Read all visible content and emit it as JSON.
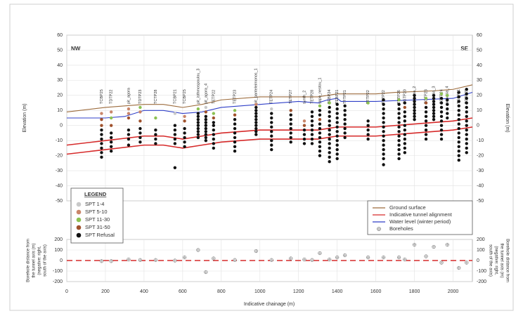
{
  "chart_data": {
    "type": "profile",
    "corner_labels": [
      "NW",
      "SE"
    ],
    "y_label": "Elevation (m)",
    "x_label": "Indicative chainage (m)",
    "xlim": [
      0,
      2100
    ],
    "xticks": [
      0,
      200,
      400,
      600,
      800,
      1000,
      1200,
      1400,
      1600,
      1800,
      2000
    ],
    "ylim": [
      -50,
      60
    ],
    "yticks": [
      -50,
      -40,
      -30,
      -20,
      -10,
      0,
      10,
      20,
      30,
      40,
      50,
      60
    ],
    "y2lim": [
      -200,
      200
    ],
    "y2ticks": [
      -200,
      -100,
      0,
      100,
      200
    ],
    "y2_label": [
      "Borehole distance from",
      "the tunnel axis (m)",
      "(negative: right,",
      "south of the axis)"
    ],
    "grid": true,
    "series": [
      {
        "name": "Ground surface",
        "color": "#9c6b3c",
        "x": [
          0,
          200,
          400,
          500,
          600,
          700,
          800,
          1000,
          1200,
          1300,
          1350,
          1400,
          1600,
          1700,
          1900,
          2000,
          2100
        ],
        "values": [
          9,
          12,
          14,
          14,
          12,
          14,
          17,
          19,
          19,
          19,
          20,
          21,
          21,
          22,
          23,
          24,
          27
        ]
      },
      {
        "name": "Indicative tunnel alignment",
        "color": "#d62a2a",
        "x": [
          0,
          200,
          400,
          500,
          600,
          700,
          800,
          1000,
          1300,
          1400,
          1600,
          1800,
          2000,
          2100
        ],
        "values": [
          -13,
          -10,
          -7,
          -7,
          -9,
          -7,
          -5,
          -3,
          -3,
          -1,
          -1,
          1,
          3,
          5
        ],
        "lower_values": [
          -19,
          -16,
          -13,
          -13,
          -15,
          -13,
          -11,
          -9,
          -9,
          -7,
          -7,
          -5,
          -3,
          -1
        ]
      },
      {
        "name": "Water level (winter period)",
        "color": "#2f3fc8",
        "x": [
          0,
          200,
          300,
          400,
          500,
          600,
          700,
          800,
          1000,
          1200,
          1300,
          1350,
          1400,
          1420,
          1600,
          1800,
          2000,
          2100
        ],
        "values": [
          5,
          5,
          6,
          10,
          10,
          8,
          9,
          12,
          14,
          16,
          15,
          17,
          18,
          16,
          16,
          17,
          18,
          22
        ]
      }
    ],
    "legend_title": "LEGEND",
    "spt_classes": [
      {
        "name": "SPT 1-4",
        "color": "#c9c9c9"
      },
      {
        "name": "SPT 5-10",
        "color": "#c9866a"
      },
      {
        "name": "SPT 11-30",
        "color": "#8cc152"
      },
      {
        "name": "SPT 31-50",
        "color": "#a0522d"
      },
      {
        "name": "SPT Refusal",
        "color": "#111111"
      }
    ],
    "boreholes_label": "Boreholes",
    "boreholes": [
      {
        "name": "TCBP25",
        "x": 180,
        "offset": -5,
        "spt": [
          [],
          [
            8
          ],
          [],
          [
            4,
            0
          ],
          [
            -3,
            -6,
            -9,
            -12,
            -15,
            -18,
            -21
          ]
        ]
      },
      {
        "name": "TDTP22",
        "x": 230,
        "offset": -5,
        "spt": [
          [],
          [
            9
          ],
          [
            5
          ],
          [
            0
          ],
          [
            -5,
            -8,
            -11,
            -14,
            -17
          ]
        ]
      },
      {
        "name": "pit_agora",
        "x": 320,
        "offset": 10,
        "spt": [
          [],
          [
            11,
            8
          ],
          [],
          [
            5
          ],
          [
            -3,
            -6,
            -9,
            -13
          ]
        ]
      },
      {
        "name": "TDTP23",
        "x": 380,
        "offset": 5,
        "spt": [
          [],
          [
            9
          ],
          [
            12
          ],
          [
            3
          ],
          [
            -2,
            -5,
            -8,
            -11
          ]
        ]
      },
      {
        "name": "TCTP28",
        "x": 460,
        "offset": 5,
        "spt": [
          [],
          [],
          [
            5
          ],
          [],
          [
            -3,
            -6,
            -9,
            -12
          ]
        ]
      },
      {
        "name": "TCBP21",
        "x": 560,
        "offset": 0,
        "spt": [
          [
            8
          ],
          [],
          [],
          [],
          [
            0,
            -3,
            -6,
            -9,
            -12,
            -28
          ]
        ]
      },
      {
        "name": "TCBP25",
        "x": 610,
        "offset": 30,
        "spt": [
          [],
          [
            6
          ],
          [],
          [
            3
          ],
          [
            -2,
            -5,
            -8,
            -11,
            -14
          ]
        ]
      },
      {
        "name": "pit_isthmospoulou_3",
        "x": 680,
        "offset": 100,
        "spt": [
          [],
          [],
          [
            11
          ],
          [],
          [
            8,
            6,
            4,
            2,
            0,
            -2,
            -4,
            -6,
            -8
          ]
        ]
      },
      {
        "name": "pit_agora_4",
        "x": 720,
        "offset": -110,
        "spt": [
          [
            12
          ],
          [],
          [],
          [
            9
          ],
          [
            6,
            4,
            2,
            0,
            -2,
            -4,
            -6,
            -8,
            -10
          ]
        ]
      },
      {
        "name": "TETP22",
        "x": 760,
        "offset": 20,
        "spt": [
          [],
          [],
          [
            8
          ],
          [
            5
          ],
          [
            2,
            0,
            -3,
            -6,
            -9,
            -12,
            -15
          ]
        ]
      },
      {
        "name": "TETP23",
        "x": 870,
        "offset": 5,
        "spt": [
          [],
          [],
          [
            10
          ],
          [
            7
          ],
          [
            4,
            1,
            -2,
            -5,
            -8,
            -11,
            -14,
            -17
          ]
        ]
      },
      {
        "name": "pit_panteleimonos_1",
        "x": 980,
        "offset": 90,
        "spt": [
          [],
          [
            14
          ],
          [],
          [],
          [
            12,
            10,
            8,
            6,
            4,
            2,
            0,
            -2,
            -4,
            -6
          ]
        ]
      },
      {
        "name": "TETP24",
        "x": 1060,
        "offset": 5,
        "spt": [
          [
            11
          ],
          [],
          [],
          [],
          [
            8,
            5,
            2,
            -1,
            -4,
            -7,
            -10,
            -13,
            -16
          ]
        ]
      },
      {
        "name": "TETP27",
        "x": 1160,
        "offset": 20,
        "spt": [
          [],
          [],
          [],
          [
            10
          ],
          [
            7,
            4,
            1,
            -2,
            -5,
            -8,
            -11
          ]
        ]
      },
      {
        "name": "synth_2",
        "x": 1230,
        "offset": 10,
        "spt": [
          [],
          [
            3
          ],
          [],
          [
            0
          ],
          [
            -3,
            -6,
            -9,
            -12
          ]
        ]
      },
      {
        "name": "TETP28",
        "x": 1270,
        "offset": 5,
        "spt": [
          [],
          [],
          [],
          [],
          [
            9,
            6,
            3,
            0,
            -3,
            -6,
            -9,
            -12
          ]
        ]
      },
      {
        "name": "sapo_nestou_1",
        "x": 1310,
        "offset": 70,
        "spt": [
          [],
          [],
          [
            13
          ],
          [
            4
          ],
          [
            10,
            7,
            1,
            -2,
            -5,
            -8,
            -11,
            -14,
            -17,
            -20
          ]
        ]
      },
      {
        "name": "TEBP24",
        "x": 1360,
        "offset": 10,
        "spt": [
          [],
          [],
          [
            15
          ],
          [],
          [
            12,
            9,
            6,
            3,
            0,
            -3,
            -6,
            -9,
            -12,
            -15,
            -18,
            -21,
            -24
          ]
        ]
      },
      {
        "name": "TEBP21",
        "x": 1400,
        "offset": 30,
        "spt": [
          [],
          [],
          [],
          [],
          [
            14,
            11,
            8,
            5,
            2,
            -1,
            -4,
            -7,
            -10,
            -13,
            -16,
            -19,
            -22
          ]
        ]
      },
      {
        "name": "TFTP21",
        "x": 1440,
        "offset": 50,
        "spt": [
          [],
          [],
          [],
          [],
          [
            13,
            10,
            7,
            4,
            1,
            -2,
            -5,
            -8
          ]
        ]
      },
      {
        "name": "TFTP22",
        "x": 1560,
        "offset": 30,
        "spt": [
          [],
          [],
          [
            15
          ],
          [],
          [
            3,
            0,
            -3,
            -6,
            -9
          ]
        ]
      },
      {
        "name": "TFTP22",
        "x": 1640,
        "offset": 30,
        "spt": [
          [],
          [],
          [],
          [],
          [
            17,
            14,
            11,
            8,
            5,
            2,
            -1,
            -4,
            -7,
            -10,
            -13,
            -16,
            -19,
            -22,
            -26
          ]
        ]
      },
      {
        "name": "TFTP26",
        "x": 1720,
        "offset": 30,
        "spt": [
          [],
          [],
          [
            17
          ],
          [],
          [
            14,
            11,
            8,
            5,
            2,
            -1,
            -4,
            -7,
            -10,
            -13,
            -16,
            -19,
            -22
          ]
        ]
      },
      {
        "name": "TGTP20",
        "x": 1750,
        "offset": 10,
        "spt": [
          [],
          [],
          [],
          [
            12
          ],
          [
            15,
            9,
            6,
            3,
            0,
            -3,
            -6,
            -9,
            -12,
            -15,
            -18
          ]
        ]
      },
      {
        "name": "arinakia_2",
        "x": 1800,
        "offset": 150,
        "spt": [
          [],
          [],
          [],
          [],
          [
            20,
            18,
            16,
            14,
            12,
            10,
            8,
            6,
            4
          ]
        ]
      },
      {
        "name": "TGTP23",
        "x": 1860,
        "offset": 40,
        "spt": [
          [],
          [],
          [
            18
          ],
          [
            15
          ],
          [
            12,
            9,
            6,
            3,
            0,
            -3,
            -6,
            -9
          ]
        ]
      },
      {
        "name": "arinakia_3",
        "x": 1900,
        "offset": 130,
        "spt": [
          [],
          [],
          [],
          [],
          [
            20,
            18,
            16,
            14,
            12,
            10,
            8,
            6,
            4
          ]
        ]
      },
      {
        "name": "TGTP24",
        "x": 1940,
        "offset": -20,
        "spt": [
          [],
          [],
          [
            21
          ],
          [],
          [
            18,
            15,
            12,
            9,
            6,
            3,
            0,
            -3,
            -6,
            -9
          ]
        ]
      },
      {
        "name": "arinakia_4",
        "x": 1970,
        "offset": 150,
        "spt": [
          [],
          [],
          [
            20
          ],
          [],
          [
            17,
            14,
            11,
            8,
            5
          ]
        ]
      },
      {
        "name": "TGBP21",
        "x": 2030,
        "offset": -70,
        "spt": [
          [],
          [],
          [],
          [],
          [
            22,
            19,
            16,
            13,
            10,
            7,
            4,
            1,
            -2,
            -5,
            -8,
            -11,
            -14,
            -17,
            -20,
            -23
          ]
        ]
      },
      {
        "name": "TGBP22",
        "x": 2070,
        "offset": -20,
        "spt": [
          [],
          [],
          [],
          [],
          [
            24,
            21,
            18,
            15,
            12,
            9,
            6,
            3,
            0,
            -3,
            -6,
            -9,
            -12,
            -15,
            -18
          ]
        ]
      }
    ]
  }
}
